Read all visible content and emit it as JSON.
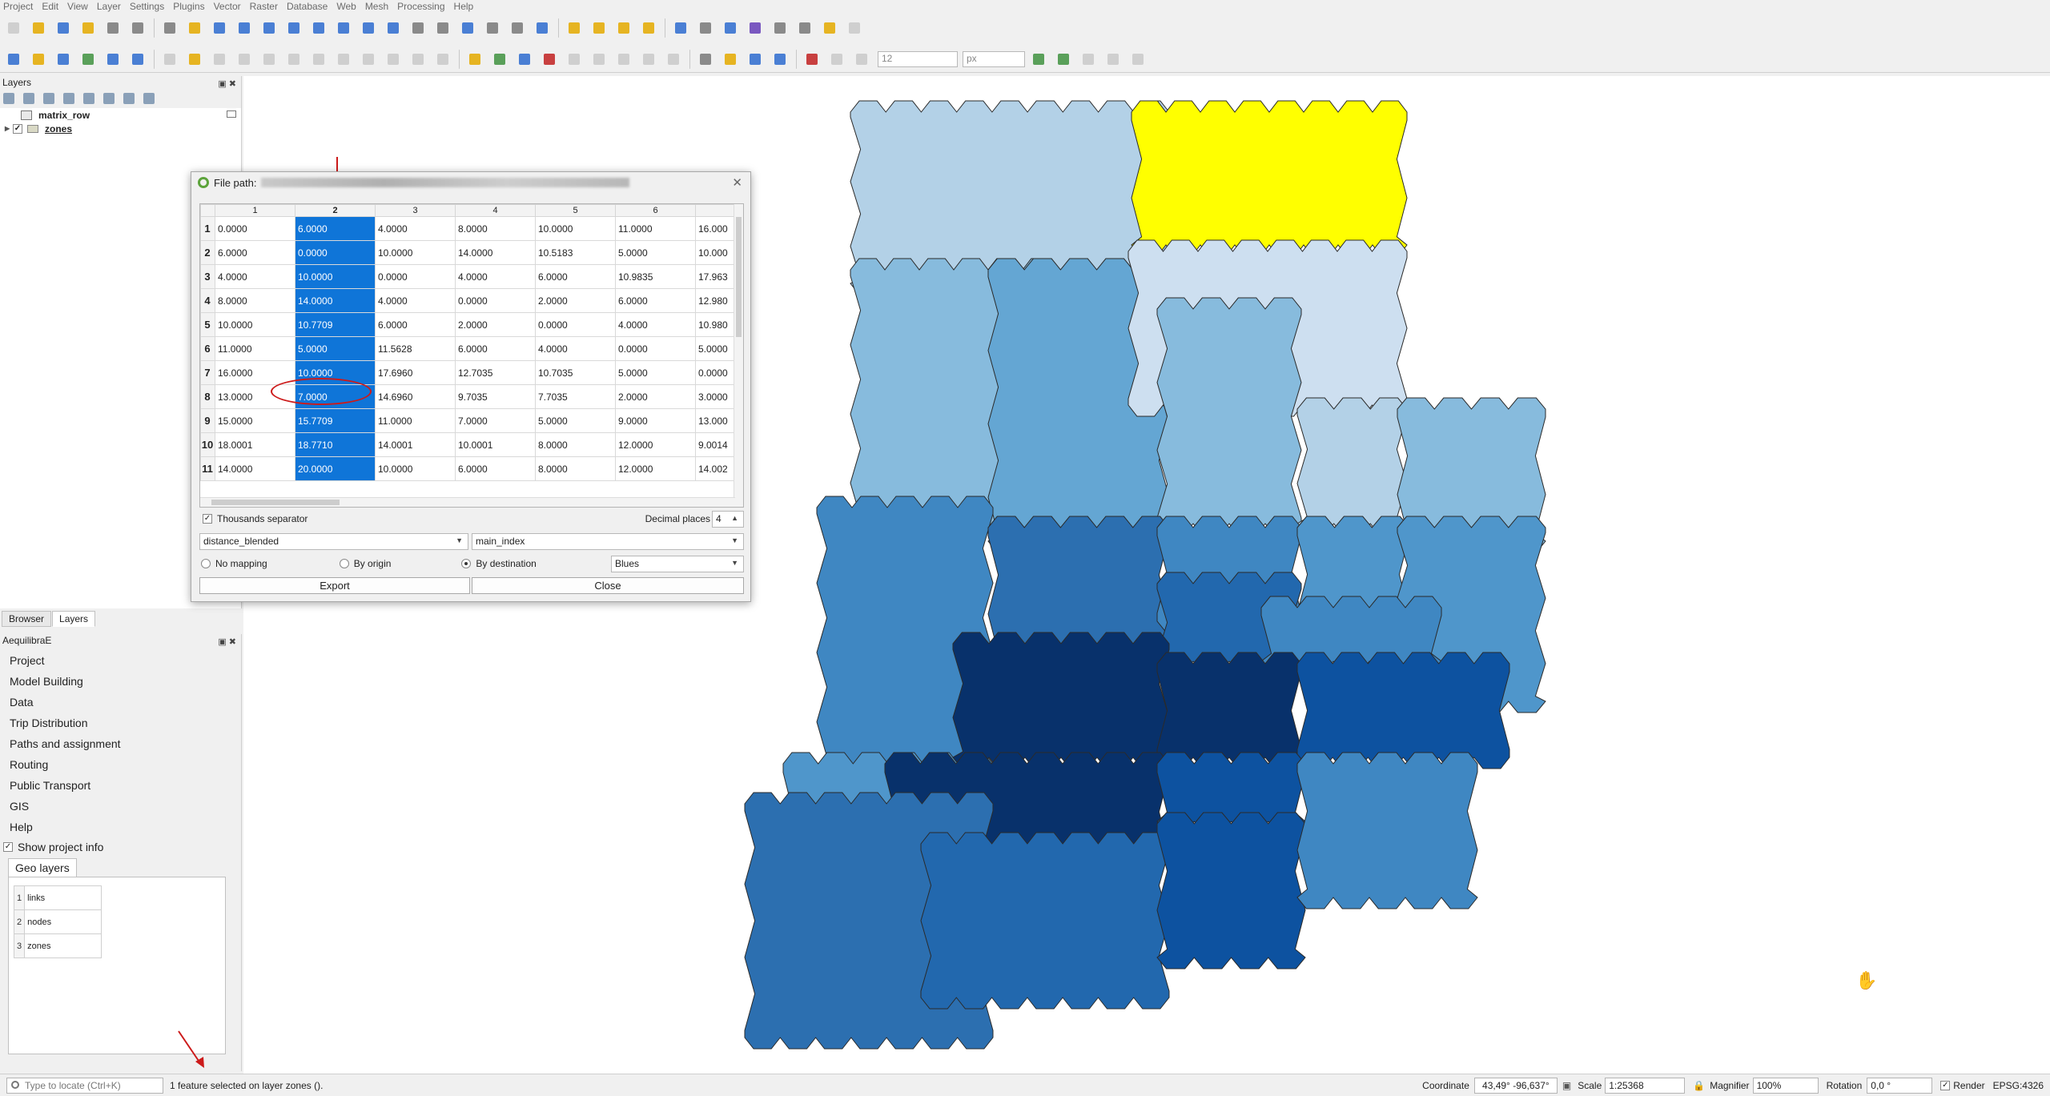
{
  "menu": [
    "Project",
    "Edit",
    "View",
    "Layer",
    "Settings",
    "Plugins",
    "Vector",
    "Raster",
    "Database",
    "Web",
    "Mesh",
    "Processing",
    "Help"
  ],
  "toolbar2": {
    "font_size_value": "12",
    "font_unit": "px"
  },
  "layers_panel": {
    "title": "Layers",
    "layers": [
      {
        "name": "matrix_row",
        "checked": false
      },
      {
        "name": "zones",
        "checked": true
      }
    ]
  },
  "panel_tabs": [
    "Browser",
    "Layers"
  ],
  "aequilibrae_panel": {
    "title": "AequilibraE",
    "items": [
      "Project",
      "Model Building",
      "Data",
      "Trip Distribution",
      "Paths and assignment",
      "Routing",
      "Public Transport",
      "GIS",
      "Help"
    ],
    "show_project_info_label": "Show project info",
    "geo_layers_tab": "Geo layers",
    "geo_layers": [
      {
        "index": "1",
        "name": "links"
      },
      {
        "index": "2",
        "name": "nodes"
      },
      {
        "index": "3",
        "name": "zones"
      }
    ]
  },
  "dialog": {
    "title_prefix": "File path:",
    "columns": [
      "1",
      "2",
      "3",
      "4",
      "5",
      "6",
      ""
    ],
    "selected_column_index": 1,
    "rows": [
      {
        "label": "1",
        "cells": [
          "0.0000",
          "6.0000",
          "4.0000",
          "8.0000",
          "10.0000",
          "11.0000",
          "16.000"
        ]
      },
      {
        "label": "2",
        "cells": [
          "6.0000",
          "0.0000",
          "10.0000",
          "14.0000",
          "10.5183",
          "5.0000",
          "10.000"
        ]
      },
      {
        "label": "3",
        "cells": [
          "4.0000",
          "10.0000",
          "0.0000",
          "4.0000",
          "6.0000",
          "10.9835",
          "17.963"
        ]
      },
      {
        "label": "4",
        "cells": [
          "8.0000",
          "14.0000",
          "4.0000",
          "0.0000",
          "2.0000",
          "6.0000",
          "12.980"
        ]
      },
      {
        "label": "5",
        "cells": [
          "10.0000",
          "10.7709",
          "6.0000",
          "2.0000",
          "0.0000",
          "4.0000",
          "10.980"
        ]
      },
      {
        "label": "6",
        "cells": [
          "11.0000",
          "5.0000",
          "11.5628",
          "6.0000",
          "4.0000",
          "0.0000",
          "5.0000"
        ]
      },
      {
        "label": "7",
        "cells": [
          "16.0000",
          "10.0000",
          "17.6960",
          "12.7035",
          "10.7035",
          "5.0000",
          "0.0000"
        ]
      },
      {
        "label": "8",
        "cells": [
          "13.0000",
          "7.0000",
          "14.6960",
          "9.7035",
          "7.7035",
          "2.0000",
          "3.0000"
        ]
      },
      {
        "label": "9",
        "cells": [
          "15.0000",
          "15.7709",
          "11.0000",
          "7.0000",
          "5.0000",
          "9.0000",
          "13.000"
        ]
      },
      {
        "label": "10",
        "cells": [
          "18.0001",
          "18.7710",
          "14.0001",
          "10.0001",
          "8.0000",
          "12.0000",
          "9.0014"
        ]
      },
      {
        "label": "11",
        "cells": [
          "14.0000",
          "20.0000",
          "10.0000",
          "6.0000",
          "8.0000",
          "12.0000",
          "14.002"
        ]
      }
    ],
    "thousands_separator_label": "Thousands separator",
    "thousands_separator_checked": true,
    "decimal_places_label": "Decimal places",
    "decimal_places_value": "4",
    "matrix_core": "distance_blended",
    "index": "main_index",
    "mapping_options": [
      "No mapping",
      "By origin",
      "By destination"
    ],
    "mapping_selected": "By destination",
    "color_ramp": "Blues",
    "export_label": "Export",
    "close_label": "Close"
  },
  "statusbar": {
    "locator_placeholder": "Type to locate (Ctrl+K)",
    "message": "1 feature selected on layer zones ().",
    "coordinate_label": "Coordinate",
    "coordinate_value": "43,49° -96,637°",
    "scale_label": "Scale",
    "scale_value": "1:25368",
    "magnifier_label": "Magnifier",
    "magnifier_value": "100%",
    "rotation_label": "Rotation",
    "rotation_value": "0,0 °",
    "render_label": "Render",
    "crs": "EPSG:4326"
  },
  "colors": {
    "yellow_selected": "#ffff00",
    "blues": [
      "#cddff0",
      "#b3d1e7",
      "#9dc5e1",
      "#87bbdd",
      "#64a6d3",
      "#4f96cb",
      "#3f87c2",
      "#2c6fb0",
      "#2268ae",
      "#0d52a0",
      "#0a4891",
      "#08316b"
    ],
    "annotation_red": "#cc1a1a",
    "selection_blue": "#0f75d8"
  }
}
